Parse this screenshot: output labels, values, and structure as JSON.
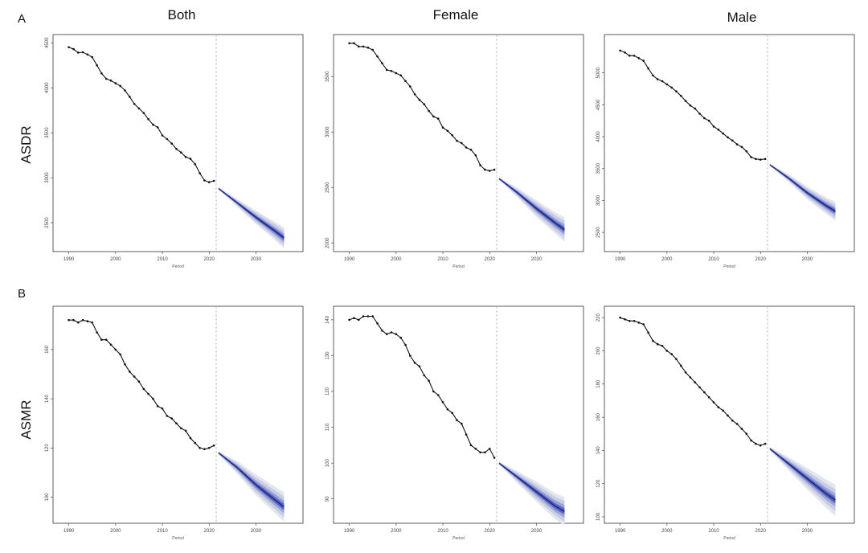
{
  "figure": {
    "panel_labels": [
      "A",
      "B"
    ],
    "column_titles": [
      "Both",
      "Female",
      "Male"
    ],
    "row_labels": [
      "ASDR",
      "ASMR"
    ]
  },
  "style": {
    "observed_color": "#111111",
    "projection_color": "#1b2a8c",
    "band_colors": [
      "#e4e6ee",
      "#c9cde4",
      "#9aa3d6",
      "#5966c0"
    ],
    "divider_color": "#aaaaaa"
  },
  "chart_data": [
    {
      "type": "line",
      "row": "ASDR",
      "column": "Both",
      "xlabel": "Period",
      "xlim": [
        1988,
        2038
      ],
      "ylim": [
        2250,
        4520
      ],
      "xticks": [
        1990,
        2000,
        2010,
        2020,
        2030
      ],
      "yticks": [
        2500,
        3000,
        3500,
        4000,
        4500
      ],
      "divider_x": 2021.5,
      "observed": {
        "x": [
          1990,
          1991,
          1992,
          1993,
          1994,
          1995,
          1996,
          1997,
          1998,
          1999,
          2000,
          2001,
          2002,
          2003,
          2004,
          2005,
          2006,
          2007,
          2008,
          2009,
          2010,
          2011,
          2012,
          2013,
          2014,
          2015,
          2016,
          2017,
          2018,
          2019,
          2020,
          2021
        ],
        "y": [
          4450,
          4430,
          4390,
          4395,
          4370,
          4340,
          4250,
          4160,
          4100,
          4080,
          4050,
          4020,
          3970,
          3900,
          3820,
          3770,
          3720,
          3650,
          3590,
          3560,
          3470,
          3430,
          3380,
          3320,
          3280,
          3230,
          3210,
          3150,
          3050,
          2970,
          2950,
          2965
        ]
      },
      "projection": {
        "x": [
          2022,
          2026,
          2030,
          2034,
          2036
        ],
        "y": [
          2880,
          2720,
          2560,
          2410,
          2330
        ],
        "band_halfwidths": [
          [
            10,
            45,
            75,
            100,
            115
          ],
          [
            5,
            30,
            55,
            75,
            85
          ],
          [
            3,
            18,
            32,
            45,
            52
          ],
          [
            1,
            9,
            16,
            22,
            26
          ]
        ]
      }
    },
    {
      "type": "line",
      "row": "ASDR",
      "column": "Female",
      "xlabel": "Period",
      "xlim": [
        1988,
        2038
      ],
      "ylim": [
        1980,
        3820
      ],
      "xticks": [
        1990,
        2000,
        2010,
        2020,
        2030
      ],
      "yticks": [
        2000,
        2500,
        3000,
        3500
      ],
      "divider_x": 2021.5,
      "observed": {
        "x": [
          1990,
          1991,
          1992,
          1993,
          1994,
          1995,
          1996,
          1997,
          1998,
          1999,
          2000,
          2001,
          2002,
          2003,
          2004,
          2005,
          2006,
          2007,
          2008,
          2009,
          2010,
          2011,
          2012,
          2013,
          2014,
          2015,
          2016,
          2017,
          2018,
          2019,
          2020,
          2021
        ],
        "y": [
          3800,
          3800,
          3770,
          3770,
          3760,
          3740,
          3680,
          3620,
          3560,
          3550,
          3530,
          3510,
          3460,
          3410,
          3340,
          3290,
          3250,
          3190,
          3140,
          3120,
          3040,
          3010,
          2970,
          2920,
          2900,
          2860,
          2840,
          2790,
          2700,
          2660,
          2650,
          2660
        ]
      },
      "projection": {
        "x": [
          2022,
          2026,
          2030,
          2034,
          2036
        ],
        "y": [
          2580,
          2450,
          2310,
          2180,
          2120
        ],
        "band_halfwidths": [
          [
            10,
            45,
            75,
            95,
            110
          ],
          [
            5,
            30,
            55,
            70,
            80
          ],
          [
            3,
            18,
            32,
            42,
            48
          ],
          [
            1,
            9,
            16,
            21,
            24
          ]
        ]
      }
    },
    {
      "type": "line",
      "row": "ASDR",
      "column": "Male",
      "xlabel": "Period",
      "xlim": [
        1988,
        2038
      ],
      "ylim": [
        2300,
        5500
      ],
      "xticks": [
        1990,
        2000,
        2010,
        2020,
        2030
      ],
      "yticks": [
        2500,
        3000,
        3500,
        4000,
        4500,
        5000
      ],
      "divider_x": 2021.5,
      "observed": {
        "x": [
          1990,
          1991,
          1992,
          1993,
          1994,
          1995,
          1996,
          1997,
          1998,
          1999,
          2000,
          2001,
          2002,
          2003,
          2004,
          2005,
          2006,
          2007,
          2008,
          2009,
          2010,
          2011,
          2012,
          2013,
          2014,
          2015,
          2016,
          2017,
          2018,
          2019,
          2020,
          2021
        ],
        "y": [
          5350,
          5320,
          5270,
          5270,
          5230,
          5190,
          5070,
          4960,
          4900,
          4870,
          4820,
          4770,
          4710,
          4640,
          4560,
          4490,
          4440,
          4360,
          4290,
          4250,
          4160,
          4110,
          4050,
          3990,
          3940,
          3880,
          3840,
          3770,
          3680,
          3650,
          3640,
          3650
        ]
      },
      "projection": {
        "x": [
          2022,
          2026,
          2030,
          2034,
          2036
        ],
        "y": [
          3560,
          3350,
          3120,
          2920,
          2830
        ],
        "band_halfwidths": [
          [
            15,
            60,
            100,
            130,
            150
          ],
          [
            8,
            40,
            70,
            95,
            110
          ],
          [
            4,
            24,
            42,
            58,
            66
          ],
          [
            2,
            12,
            21,
            29,
            33
          ]
        ]
      }
    },
    {
      "type": "line",
      "row": "ASMR",
      "column": "Both",
      "xlabel": "Period",
      "xlim": [
        1988,
        2038
      ],
      "ylim": [
        92,
        175
      ],
      "xticks": [
        1990,
        2000,
        2010,
        2020,
        2030
      ],
      "yticks": [
        100,
        120,
        140,
        160
      ],
      "divider_x": 2021.5,
      "observed": {
        "x": [
          1990,
          1991,
          1992,
          1993,
          1994,
          1995,
          1996,
          1997,
          1998,
          1999,
          2000,
          2001,
          2002,
          2003,
          2004,
          2005,
          2006,
          2007,
          2008,
          2009,
          2010,
          2011,
          2012,
          2013,
          2014,
          2015,
          2016,
          2017,
          2018,
          2019,
          2020,
          2021
        ],
        "y": [
          172,
          172,
          171,
          172,
          171.5,
          171,
          167,
          164,
          164,
          162,
          160,
          158,
          154,
          151,
          149,
          147,
          144,
          142,
          140,
          137,
          136,
          133,
          132,
          130,
          128,
          127,
          124,
          122,
          120,
          119.5,
          120,
          121
        ]
      },
      "projection": {
        "x": [
          2022,
          2026,
          2030,
          2034,
          2036
        ],
        "y": [
          118,
          112,
          105,
          99,
          96
        ],
        "band_halfwidths": [
          [
            0.6,
            2.6,
            4.2,
            5.4,
            6.0
          ],
          [
            0.4,
            1.8,
            3.0,
            3.9,
            4.3
          ],
          [
            0.2,
            1.1,
            1.8,
            2.4,
            2.6
          ],
          [
            0.1,
            0.5,
            0.9,
            1.2,
            1.3
          ]
        ]
      }
    },
    {
      "type": "line",
      "row": "ASMR",
      "column": "Female",
      "xlabel": "Period",
      "xlim": [
        1988,
        2038
      ],
      "ylim": [
        85,
        142
      ],
      "xticks": [
        1990,
        2000,
        2010,
        2020,
        2030
      ],
      "yticks": [
        90,
        100,
        110,
        120,
        130,
        140
      ],
      "divider_x": 2021.5,
      "observed": {
        "x": [
          1990,
          1991,
          1992,
          1993,
          1994,
          1995,
          1996,
          1997,
          1998,
          1999,
          2000,
          2001,
          2002,
          2003,
          2004,
          2005,
          2006,
          2007,
          2008,
          2009,
          2010,
          2011,
          2012,
          2013,
          2014,
          2015,
          2016,
          2017,
          2018,
          2019,
          2020,
          2021
        ],
        "y": [
          140,
          140.5,
          140,
          141,
          141,
          141,
          139,
          137,
          136,
          136.5,
          136,
          135,
          133,
          130,
          128,
          127,
          124.5,
          123,
          120,
          119,
          117,
          115,
          114,
          112,
          111,
          108,
          105,
          104,
          103,
          103,
          104,
          101.5
        ]
      },
      "projection": {
        "x": [
          2022,
          2026,
          2030,
          2034,
          2036
        ],
        "y": [
          100,
          96,
          92,
          88,
          86.5
        ],
        "band_halfwidths": [
          [
            0.4,
            1.7,
            2.8,
            3.6,
            4.0
          ],
          [
            0.25,
            1.2,
            2.0,
            2.6,
            2.9
          ],
          [
            0.15,
            0.7,
            1.2,
            1.6,
            1.8
          ],
          [
            0.07,
            0.35,
            0.6,
            0.8,
            0.9
          ]
        ]
      }
    },
    {
      "type": "line",
      "row": "ASMR",
      "column": "Male",
      "xlabel": "Period",
      "xlim": [
        1988,
        2038
      ],
      "ylim": [
        100,
        223
      ],
      "xticks": [
        1990,
        2000,
        2010,
        2020,
        2030
      ],
      "yticks": [
        100,
        120,
        140,
        160,
        180,
        200,
        220
      ],
      "divider_x": 2021.5,
      "observed": {
        "x": [
          1990,
          1991,
          1992,
          1993,
          1994,
          1995,
          1996,
          1997,
          1998,
          1999,
          2000,
          2001,
          2002,
          2003,
          2004,
          2005,
          2006,
          2007,
          2008,
          2009,
          2010,
          2011,
          2012,
          2013,
          2014,
          2015,
          2016,
          2017,
          2018,
          2019,
          2020,
          2021
        ],
        "y": [
          220,
          219,
          218,
          218,
          217,
          216,
          211,
          206,
          204,
          203,
          200,
          198,
          195,
          191,
          187,
          184,
          181,
          178,
          175,
          172,
          169,
          166,
          164,
          161,
          158,
          156,
          153,
          150,
          146,
          144,
          143,
          144
        ]
      },
      "projection": {
        "x": [
          2022,
          2026,
          2030,
          2034,
          2036
        ],
        "y": [
          141,
          132,
          123,
          114,
          110
        ],
        "band_halfwidths": [
          [
            1,
            4,
            6.5,
            8.5,
            9.5
          ],
          [
            0.6,
            2.8,
            4.6,
            6.0,
            6.7
          ],
          [
            0.35,
            1.7,
            2.8,
            3.6,
            4.0
          ],
          [
            0.15,
            0.8,
            1.4,
            1.8,
            2.0
          ]
        ]
      }
    }
  ]
}
